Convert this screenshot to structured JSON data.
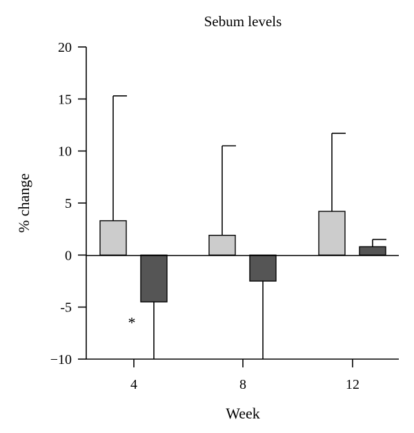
{
  "chart_data": {
    "type": "bar",
    "title": "Sebum levels",
    "xlabel": "Week",
    "ylabel": "% change",
    "ylim": [
      -10,
      20
    ],
    "y_ticks": [
      "20",
      "15",
      "10",
      "5",
      "0",
      "-5",
      "−10"
    ],
    "y_tick_values": [
      20,
      15,
      10,
      5,
      0,
      -5,
      -10
    ],
    "categories": [
      "4",
      "8",
      "12"
    ],
    "series": [
      {
        "color": "#cccccc",
        "values": [
          3.3,
          1.9,
          4.2
        ],
        "error": [
          12.0,
          8.6,
          7.5
        ],
        "error_direction": "up"
      },
      {
        "color": "#555555",
        "values": [
          -4.5,
          -2.5,
          0.8
        ],
        "error": [
          5.5,
          7.5,
          0.7
        ],
        "error_direction": "away-from-zero"
      }
    ],
    "annotations": [
      {
        "text": "*",
        "category": "4",
        "y": -6.3
      }
    ],
    "grid": false,
    "legend": "none"
  }
}
